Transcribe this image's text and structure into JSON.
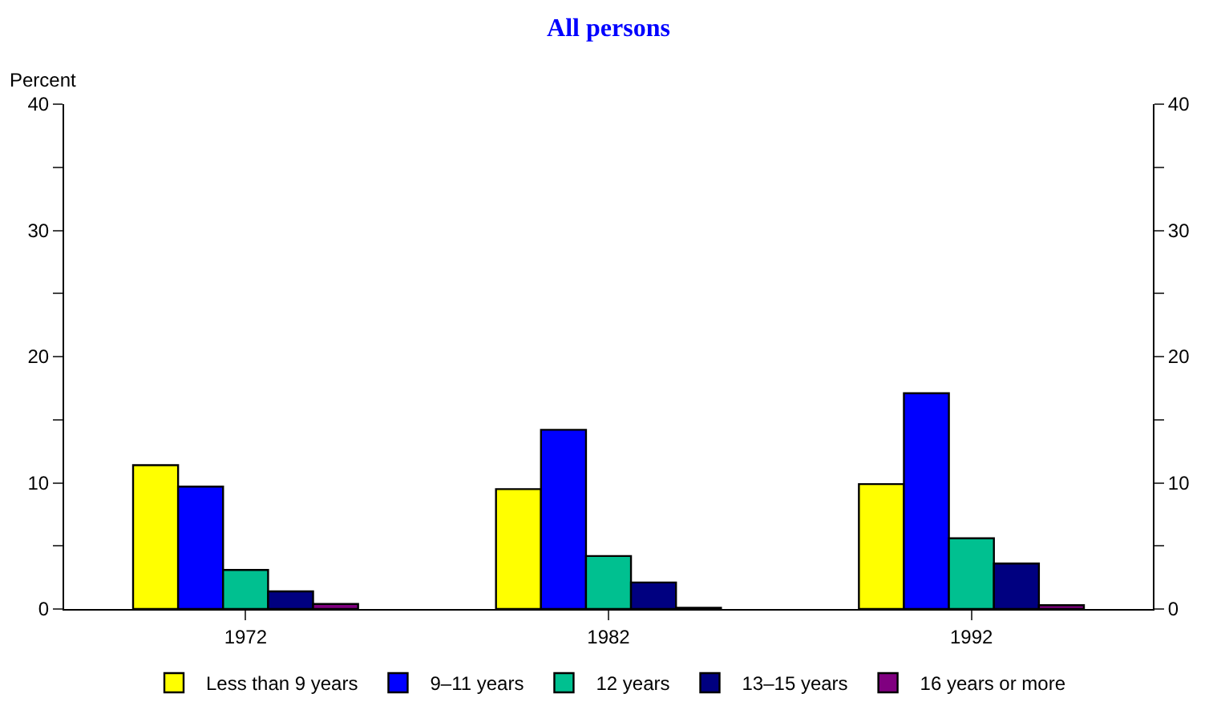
{
  "chart_data": {
    "type": "bar",
    "title": "All persons",
    "ylabel": "Percent",
    "categories": [
      "1972",
      "1982",
      "1992"
    ],
    "series": [
      {
        "name": "Less than 9 years",
        "color": "#ffff00",
        "values": [
          11.4,
          9.5,
          9.9
        ]
      },
      {
        "name": "9–11 years",
        "color": "#0000ff",
        "values": [
          9.7,
          14.2,
          17.1
        ]
      },
      {
        "name": "12 years",
        "color": "#00c090",
        "values": [
          3.1,
          4.2,
          5.6
        ]
      },
      {
        "name": "13–15 years",
        "color": "#000080",
        "values": [
          1.4,
          2.1,
          3.6
        ]
      },
      {
        "name": "16 years or more",
        "color": "#800080",
        "values": [
          0.4,
          0.1,
          0.3
        ]
      }
    ],
    "ylim": [
      0,
      40
    ],
    "yticks": [
      0,
      {
        "value": 5,
        "label": null
      },
      10,
      {
        "value": 15,
        "label": null
      },
      20,
      {
        "value": 25,
        "label": null
      },
      30,
      {
        "value": 35,
        "label": null
      },
      40
    ],
    "y2lim": [
      0,
      40
    ],
    "y2ticks": [
      0,
      {
        "value": 5,
        "label": null
      },
      10,
      {
        "value": 15,
        "label": null
      },
      20,
      {
        "value": 25,
        "label": null
      },
      30,
      {
        "value": 35,
        "label": null
      },
      40
    ],
    "legend": "bottom"
  }
}
